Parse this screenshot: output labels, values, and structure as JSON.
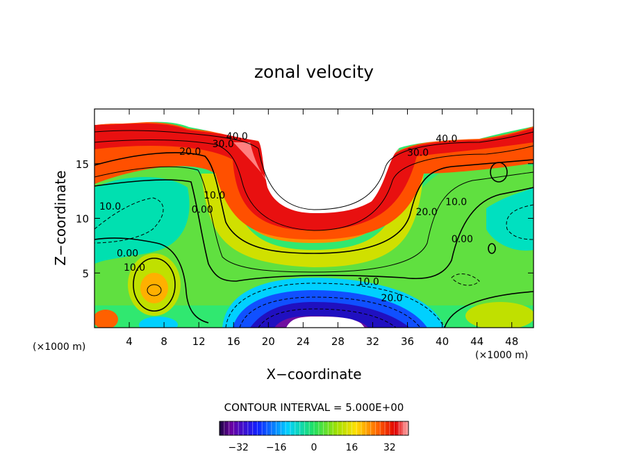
{
  "chart_data": {
    "type": "contour",
    "title": "zonal velocity",
    "xlabel": "X−coordinate",
    "ylabel": "Z−coordinate",
    "x_unit_left": "(×1000 m)",
    "x_unit_right": "(×1000 m)",
    "xlim": [
      0,
      50.5
    ],
    "ylim": [
      0,
      20
    ],
    "x_ticks": [
      4,
      8,
      12,
      16,
      20,
      24,
      28,
      32,
      36,
      40,
      44,
      48
    ],
    "x_tick_labels": [
      "4",
      "8",
      "12",
      "16",
      "20",
      "24",
      "28",
      "32",
      "36",
      "40",
      "44",
      "48"
    ],
    "y_ticks": [
      5,
      10,
      15
    ],
    "y_tick_labels": [
      "5",
      "10",
      "15"
    ],
    "contour_interval_label": "CONTOUR INTERVAL = 5.000E+00",
    "contour_interval": 5.0,
    "colorbar": {
      "range": [
        -40,
        40
      ],
      "ticks": [
        -32,
        -16,
        0,
        16,
        32
      ],
      "tick_labels": [
        "−32",
        "−16",
        "0",
        "16",
        "32"
      ]
    },
    "contour_labels": [
      {
        "text": "40.0",
        "x": 16.4,
        "z": 17.2
      },
      {
        "text": "30.0",
        "x": 14.8,
        "z": 16.5
      },
      {
        "text": "20.0",
        "x": 11.0,
        "z": 15.8
      },
      {
        "text": "10.0",
        "x": 13.8,
        "z": 11.8
      },
      {
        "text": "0.00",
        "x": 12.4,
        "z": 10.5
      },
      {
        "text": "10.0",
        "x": 1.8,
        "z": 10.8
      },
      {
        "text": "0.00",
        "x": 3.8,
        "z": 6.5
      },
      {
        "text": "10.0",
        "x": 4.6,
        "z": 5.2
      },
      {
        "text": "40.0",
        "x": 40.5,
        "z": 17.0
      },
      {
        "text": "30.0",
        "x": 37.2,
        "z": 15.7
      },
      {
        "text": "20.0",
        "x": 38.2,
        "z": 10.3
      },
      {
        "text": "10.0",
        "x": 41.6,
        "z": 11.2
      },
      {
        "text": "0.00",
        "x": 42.3,
        "z": 7.8
      },
      {
        "text": "10.0",
        "x": 31.5,
        "z": 3.9
      },
      {
        "text": "20.0",
        "x": 34.2,
        "z": 2.4
      }
    ]
  }
}
